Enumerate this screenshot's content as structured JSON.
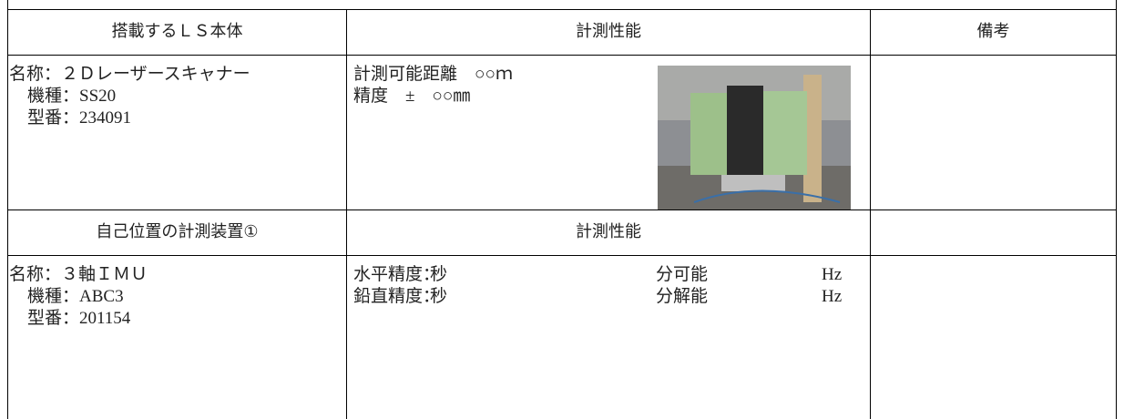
{
  "table": {
    "header1": [
      "搭載するＬＳ本体",
      "計測性能",
      "備考"
    ],
    "row1": {
      "device": [
        "名称：２Ｄレーザースキャナー",
        "機種：SS20",
        "型番：234091"
      ],
      "performance": [
        "計測可能距離　○○ｍ",
        "精度　±　○○㎜"
      ]
    },
    "header2": [
      "自己位置の計測装置①",
      "計測性能"
    ],
    "row2": {
      "device": [
        "名称：３軸ＩＭＵ",
        "機種：ABC3",
        "型番：201154"
      ],
      "performance": [
        [
          "水平精度：",
          "秒",
          "分可能",
          "Hz"
        ],
        [
          "鉛直精度：",
          "秒",
          "分解能",
          "Hz"
        ]
      ]
    }
  }
}
